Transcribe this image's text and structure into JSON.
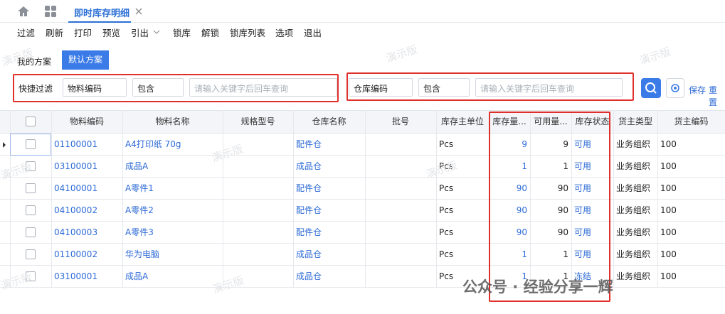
{
  "tab": {
    "title": "即时库存明细"
  },
  "toolbar": [
    "过滤",
    "刷新",
    "打印",
    "预览",
    "引出",
    "锁库",
    "解锁",
    "锁库列表",
    "选项",
    "退出"
  ],
  "schemes": [
    "我的方案",
    "默认方案"
  ],
  "filter": {
    "label": "快捷过滤",
    "groups": [
      {
        "field": "物料编码",
        "operator": "包含",
        "placeholder": "请输入关键字后回车查询"
      },
      {
        "field": "仓库编码",
        "operator": "包含",
        "placeholder": "请输入关键字后回车查询"
      }
    ],
    "actions": [
      "保存",
      "重置"
    ]
  },
  "table": {
    "columns": [
      "物料编码",
      "物料名称",
      "规格型号",
      "仓库名称",
      "批号",
      "库存主单位",
      "库存量...",
      "可用量...",
      "库存状态",
      "货主类型",
      "货主编码"
    ],
    "rows": [
      {
        "code": "01100001",
        "name": "A4打印纸 70g",
        "warehouse": "配件仓",
        "unit": "Pcs",
        "qty": 9,
        "available": 9,
        "status": "可用",
        "owner_type": "业务组织",
        "owner_code": "100"
      },
      {
        "code": "03100001",
        "name": "成品A",
        "warehouse": "成品仓",
        "unit": "Pcs",
        "qty": 1,
        "available": 1,
        "status": "可用",
        "owner_type": "业务组织",
        "owner_code": "100"
      },
      {
        "code": "04100001",
        "name": "A零件1",
        "warehouse": "配件仓",
        "unit": "Pcs",
        "qty": 90,
        "available": 90,
        "status": "可用",
        "owner_type": "业务组织",
        "owner_code": "100"
      },
      {
        "code": "04100002",
        "name": "A零件2",
        "warehouse": "配件仓",
        "unit": "Pcs",
        "qty": 90,
        "available": 90,
        "status": "可用",
        "owner_type": "业务组织",
        "owner_code": "100"
      },
      {
        "code": "04100003",
        "name": "A零件3",
        "warehouse": "配件仓",
        "unit": "Pcs",
        "qty": 90,
        "available": 90,
        "status": "可用",
        "owner_type": "业务组织",
        "owner_code": "100"
      },
      {
        "code": "01100002",
        "name": "华为电脑",
        "warehouse": "成品仓",
        "unit": "Pcs",
        "qty": 1,
        "available": 1,
        "status": "可用",
        "owner_type": "业务组织",
        "owner_code": "100"
      },
      {
        "code": "03100001",
        "name": "成品A",
        "warehouse": "成品仓",
        "unit": "Pcs",
        "qty": 1,
        "available": 1,
        "status": "冻结",
        "owner_type": "业务组织",
        "owner_code": "100"
      }
    ]
  },
  "watermark": "演示版",
  "signature": "公众号 · 经验分享一辉"
}
